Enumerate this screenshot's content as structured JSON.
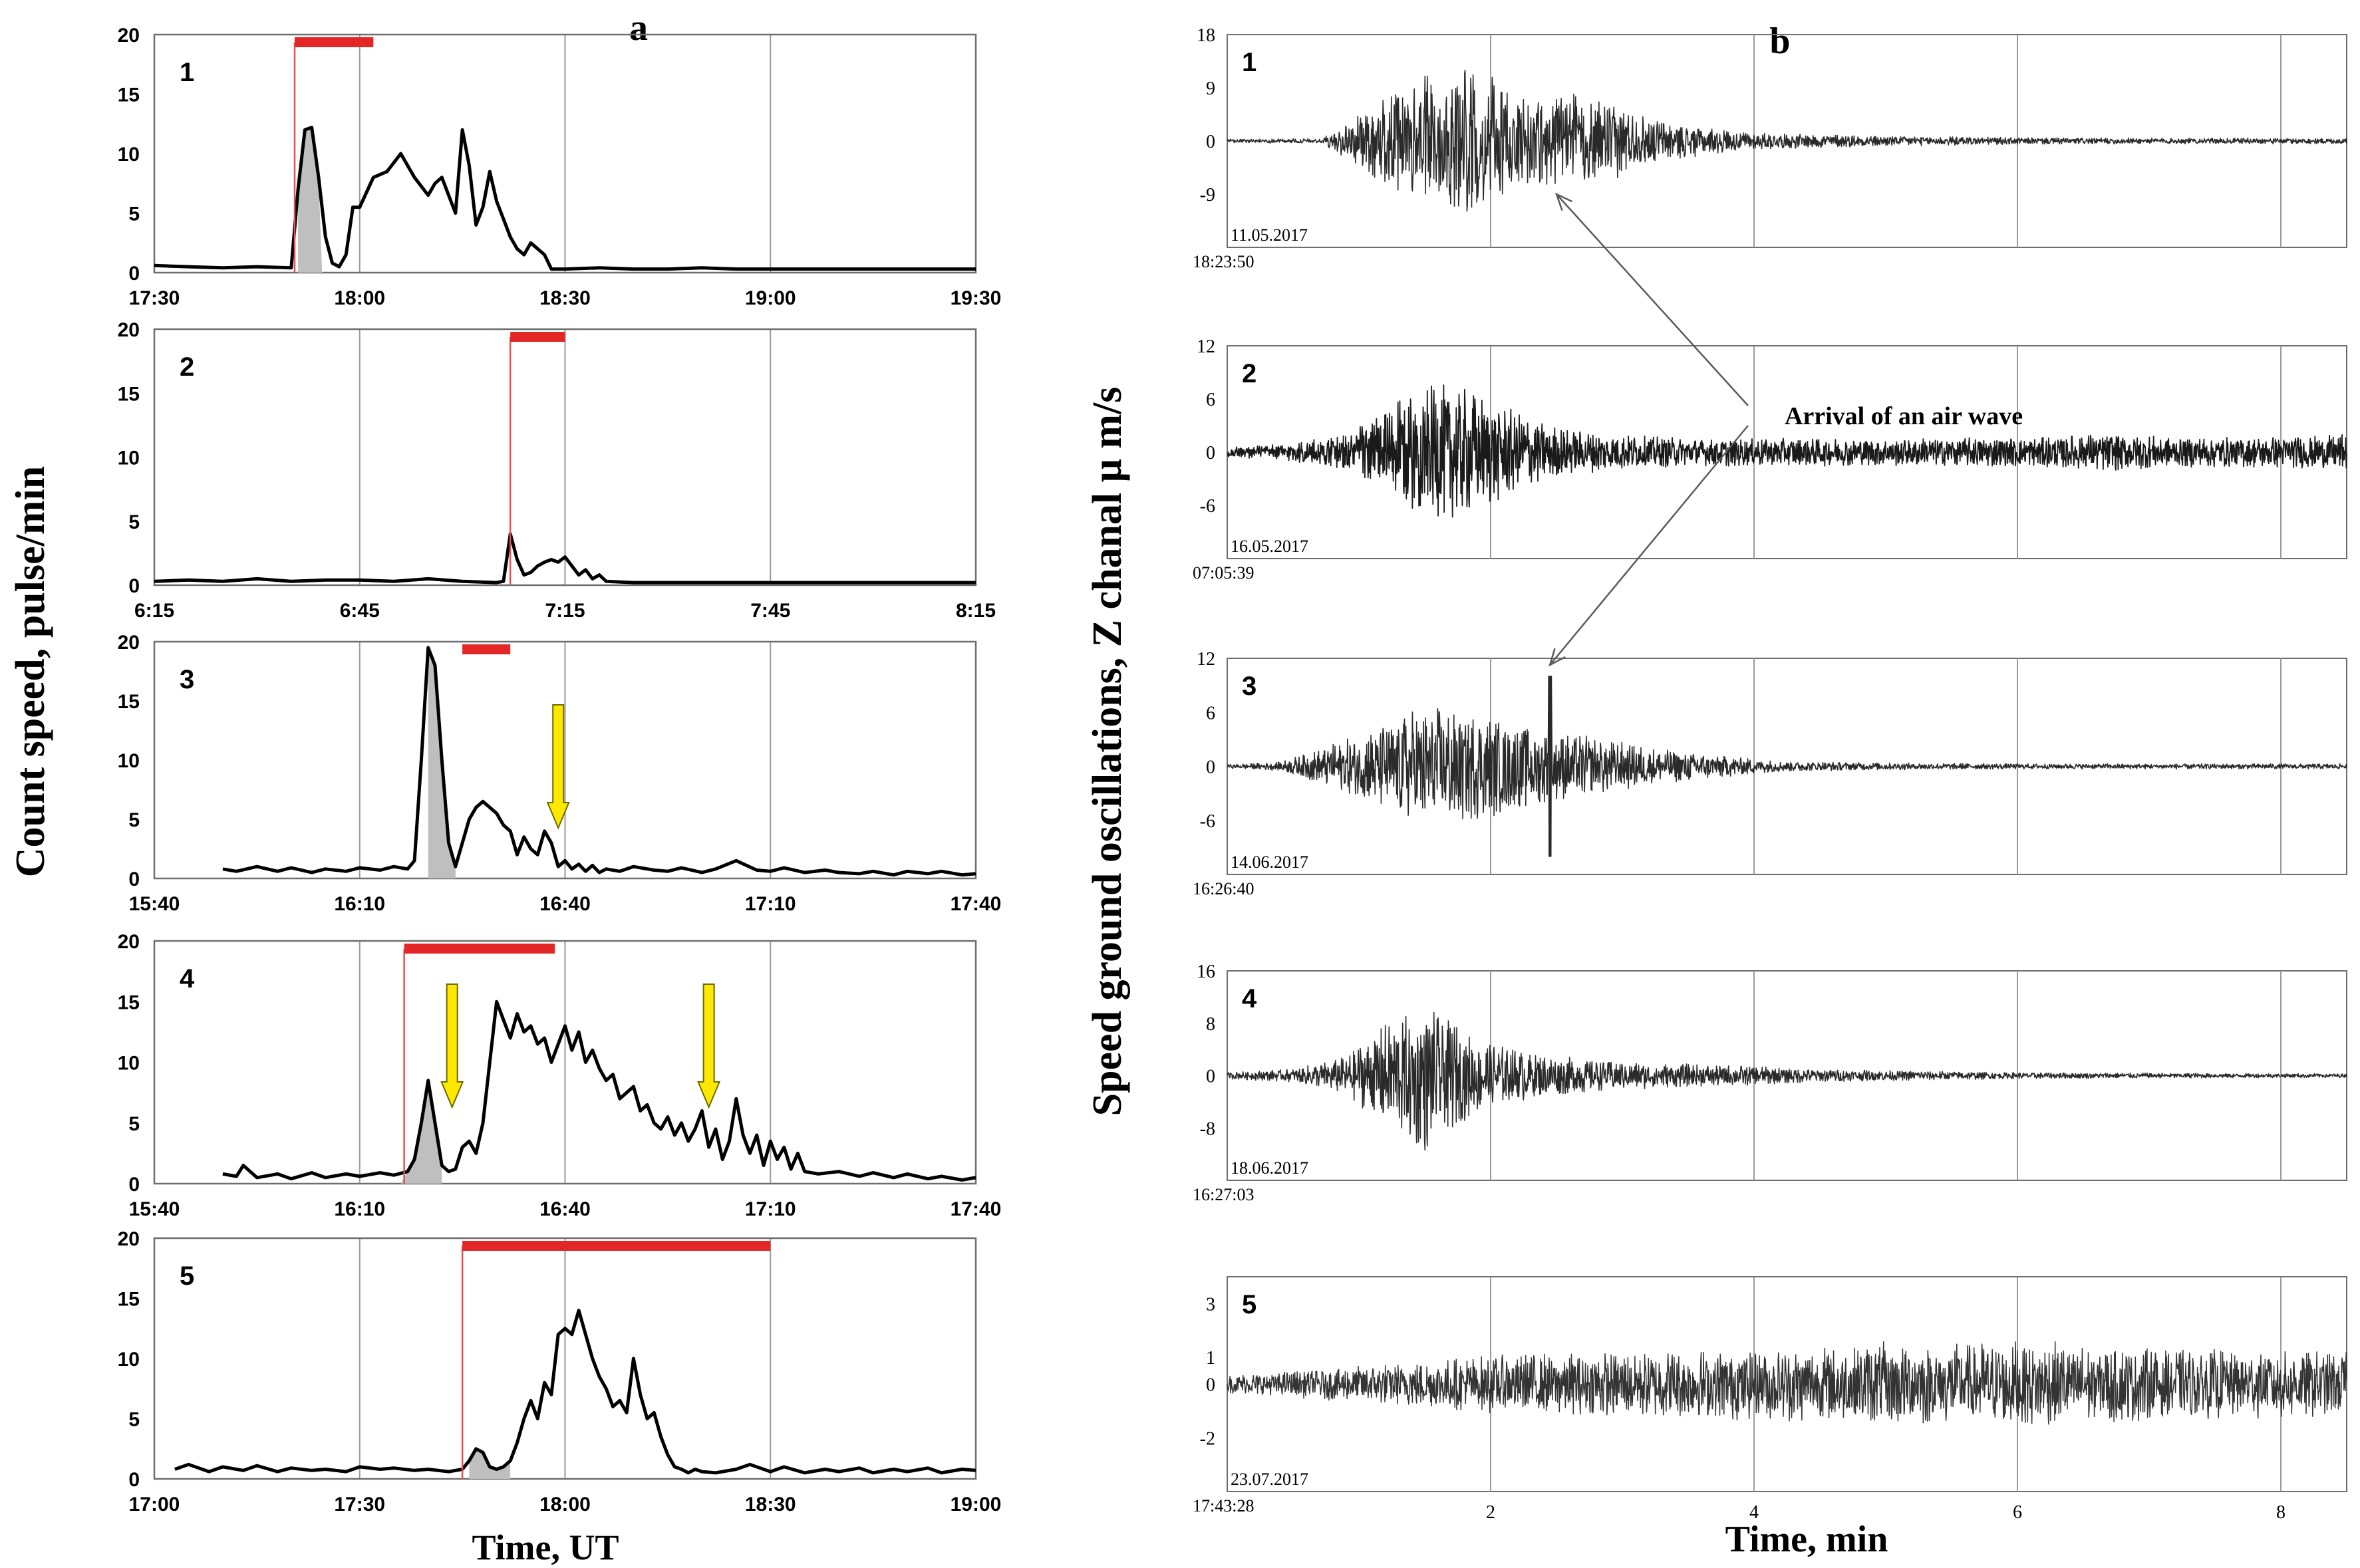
{
  "panel_letters": {
    "a": "a",
    "b": "b"
  },
  "left_ylabel": "Count speed, pulse/min",
  "left_xlabel": "Time, UT",
  "right_ylabel": "Speed ground oscillations, Z chanal    μ m/s",
  "right_xlabel": "Time, min",
  "annotation": "Arrival of an air wave",
  "colors": {
    "curve": "#000000",
    "shade": "#bfbfbf",
    "duration_bar": "#e32626",
    "onset_line": "#e85050",
    "arrow": "#ffe800",
    "arrow_edge": "#6b6b00",
    "grid": "#9a9a9a",
    "frame": "#6e6e6e"
  },
  "chart_data": [
    {
      "type": "line",
      "label": "1",
      "ylim": [
        0,
        20
      ],
      "yticks": [
        0,
        5,
        10,
        15,
        20
      ],
      "xlim": [
        0,
        120
      ],
      "xticks": [
        0,
        30,
        60,
        90,
        120
      ],
      "xtick_labels": [
        "17:30",
        "18:00",
        "18:30",
        "19:00",
        "19:30"
      ],
      "duration_bar": [
        20.5,
        32
      ],
      "onset": 20.5,
      "shaded": [
        21,
        24.5
      ],
      "arrows": [],
      "x": [
        0,
        5,
        10,
        15,
        20,
        21,
        22,
        23,
        24,
        25,
        26,
        27,
        28,
        29,
        30,
        32,
        34,
        36,
        38,
        40,
        41,
        42,
        43,
        44,
        45,
        46,
        47,
        48,
        49,
        50,
        51,
        52,
        53,
        54,
        55,
        56,
        57,
        58,
        60,
        65,
        70,
        75,
        80,
        85,
        90,
        95,
        100,
        105,
        110,
        115,
        120
      ],
      "y": [
        0.6,
        0.5,
        0.4,
        0.5,
        0.4,
        7,
        12,
        12.2,
        8,
        3,
        0.8,
        0.5,
        1.5,
        5.5,
        5.5,
        8,
        8.5,
        10,
        8,
        6.5,
        7.5,
        8,
        6.5,
        5,
        12,
        9,
        4,
        5.5,
        8.5,
        6,
        4.5,
        3,
        2,
        1.5,
        2.5,
        2,
        1.5,
        0.3,
        0.3,
        0.4,
        0.3,
        0.3,
        0.4,
        0.3,
        0.3,
        0.3,
        0.3,
        0.3,
        0.3,
        0.3,
        0.3
      ]
    },
    {
      "type": "line",
      "label": "2",
      "ylim": [
        0,
        20
      ],
      "yticks": [
        0,
        5,
        10,
        15,
        20
      ],
      "xlim": [
        0,
        120
      ],
      "xticks": [
        0,
        30,
        60,
        90,
        120
      ],
      "xtick_labels": [
        "6:15",
        "6:45",
        "7:15",
        "7:45",
        "8:15"
      ],
      "duration_bar": [
        52,
        60
      ],
      "onset": 52,
      "shaded": [],
      "arrows": [],
      "x": [
        0,
        5,
        10,
        15,
        20,
        25,
        30,
        35,
        40,
        45,
        50,
        51,
        52,
        53,
        54,
        55,
        56,
        57,
        58,
        59,
        60,
        61,
        62,
        63,
        64,
        65,
        66,
        70,
        75,
        80,
        85,
        90,
        95,
        100,
        105,
        110,
        115,
        120
      ],
      "y": [
        0.3,
        0.4,
        0.3,
        0.5,
        0.3,
        0.4,
        0.4,
        0.3,
        0.5,
        0.3,
        0.2,
        0.3,
        4,
        2,
        0.8,
        1,
        1.5,
        1.8,
        2,
        1.8,
        2.2,
        1.5,
        0.8,
        1.2,
        0.5,
        0.8,
        0.3,
        0.2,
        0.2,
        0.2,
        0.2,
        0.2,
        0.2,
        0.2,
        0.2,
        0.2,
        0.2,
        0.2
      ]
    },
    {
      "type": "line",
      "label": "3",
      "ylim": [
        0,
        20
      ],
      "yticks": [
        0,
        5,
        10,
        15,
        20
      ],
      "xlim": [
        0,
        120
      ],
      "xticks": [
        0,
        30,
        60,
        90,
        120
      ],
      "xtick_labels": [
        "15:40",
        "16:10",
        "16:40",
        "17:10",
        "17:40"
      ],
      "duration_bar": [
        45,
        52
      ],
      "onset": null,
      "shaded": [
        40,
        44
      ],
      "arrows": [
        59
      ],
      "x": [
        10,
        12,
        15,
        18,
        20,
        23,
        25,
        28,
        30,
        33,
        35,
        37,
        38,
        39,
        40,
        41,
        42,
        43,
        44,
        45,
        46,
        47,
        48,
        49,
        50,
        51,
        52,
        53,
        54,
        55,
        56,
        57,
        58,
        59,
        60,
        61,
        62,
        63,
        64,
        65,
        66,
        68,
        70,
        73,
        75,
        77,
        80,
        82,
        85,
        88,
        90,
        92,
        95,
        98,
        100,
        103,
        105,
        108,
        110,
        113,
        115,
        118,
        120
      ],
      "y": [
        0.8,
        0.6,
        1,
        0.6,
        0.9,
        0.5,
        0.8,
        0.6,
        0.9,
        0.7,
        1,
        0.8,
        1.5,
        10,
        19.5,
        18,
        10,
        3,
        1,
        3,
        5,
        6,
        6.5,
        6,
        5.5,
        4.5,
        4,
        2,
        3.5,
        2.5,
        2,
        4,
        3,
        1,
        1.5,
        0.8,
        1.2,
        0.6,
        1.1,
        0.5,
        0.8,
        0.6,
        1,
        0.7,
        0.6,
        0.9,
        0.5,
        0.8,
        1.5,
        0.7,
        0.6,
        0.9,
        0.5,
        0.7,
        0.5,
        0.4,
        0.6,
        0.3,
        0.6,
        0.4,
        0.6,
        0.3,
        0.4
      ]
    },
    {
      "type": "line",
      "label": "4",
      "ylim": [
        0,
        20
      ],
      "yticks": [
        0,
        5,
        10,
        15,
        20
      ],
      "xlim": [
        0,
        120
      ],
      "xticks": [
        0,
        30,
        60,
        90,
        120
      ],
      "xtick_labels": [
        "15:40",
        "16:10",
        "16:40",
        "17:10",
        "17:40"
      ],
      "duration_bar": [
        36.5,
        58.5
      ],
      "onset": 36.5,
      "shaded": [
        36,
        42
      ],
      "arrows": [
        43.5,
        81
      ],
      "x": [
        10,
        12,
        13,
        15,
        18,
        20,
        23,
        25,
        28,
        30,
        33,
        35,
        37,
        38,
        39,
        40,
        41,
        42,
        43,
        44,
        45,
        46,
        47,
        48,
        49,
        50,
        51,
        52,
        53,
        54,
        55,
        56,
        57,
        58,
        59,
        60,
        61,
        62,
        63,
        64,
        65,
        66,
        67,
        68,
        69,
        70,
        71,
        72,
        73,
        74,
        75,
        76,
        77,
        78,
        79,
        80,
        81,
        82,
        83,
        84,
        85,
        86,
        87,
        88,
        89,
        90,
        91,
        92,
        93,
        94,
        95,
        97,
        100,
        103,
        105,
        108,
        110,
        113,
        115,
        118,
        120
      ],
      "y": [
        0.8,
        0.6,
        1.5,
        0.5,
        0.8,
        0.4,
        0.9,
        0.5,
        0.8,
        0.6,
        0.9,
        0.7,
        1,
        2,
        5,
        8.5,
        5,
        1.5,
        1,
        1.2,
        3,
        3.5,
        2.5,
        5,
        10,
        15,
        13.5,
        12,
        14,
        12.5,
        13,
        11.5,
        12,
        10,
        11.5,
        13,
        11,
        12.5,
        10,
        11,
        9.5,
        8.5,
        9,
        7,
        7.5,
        8,
        6,
        6.5,
        5,
        4.5,
        5.5,
        4,
        5,
        3.5,
        4.5,
        6,
        3,
        4.5,
        2,
        3.5,
        7,
        4,
        2.5,
        4,
        1.5,
        3.5,
        2,
        3,
        1.2,
        2.5,
        1,
        0.8,
        1,
        0.6,
        0.9,
        0.5,
        0.8,
        0.4,
        0.6,
        0.3,
        0.5
      ]
    },
    {
      "type": "line",
      "label": "5",
      "ylim": [
        0,
        20
      ],
      "yticks": [
        0,
        5,
        10,
        15,
        20
      ],
      "xlim": [
        0,
        120
      ],
      "xticks": [
        0,
        30,
        60,
        90,
        120
      ],
      "xtick_labels": [
        "17:00",
        "17:30",
        "18:00",
        "18:30",
        "19:00"
      ],
      "duration_bar": [
        45,
        90
      ],
      "onset": 45,
      "shaded": [
        46,
        52
      ],
      "arrows": [],
      "x": [
        3,
        5,
        8,
        10,
        13,
        15,
        18,
        20,
        23,
        25,
        28,
        30,
        33,
        35,
        38,
        40,
        43,
        45,
        46,
        47,
        48,
        49,
        50,
        51,
        52,
        53,
        54,
        55,
        56,
        57,
        58,
        59,
        60,
        61,
        62,
        63,
        64,
        65,
        66,
        67,
        68,
        69,
        70,
        71,
        72,
        73,
        74,
        75,
        76,
        77,
        78,
        79,
        80,
        82,
        85,
        87,
        90,
        92,
        95,
        98,
        100,
        103,
        105,
        108,
        110,
        113,
        115,
        118,
        120
      ],
      "y": [
        0.8,
        1.2,
        0.6,
        1,
        0.7,
        1.1,
        0.6,
        0.9,
        0.7,
        0.8,
        0.6,
        1,
        0.8,
        0.9,
        0.7,
        0.8,
        0.6,
        0.8,
        1.5,
        2.5,
        2.2,
        1,
        0.8,
        1,
        1.5,
        3,
        5,
        6.5,
        5,
        8,
        7,
        12,
        12.5,
        12,
        14,
        12,
        10,
        8.5,
        7.5,
        6,
        6.5,
        5.5,
        10,
        7,
        5,
        5.5,
        3.5,
        2,
        1,
        0.8,
        0.5,
        0.8,
        0.6,
        0.5,
        0.8,
        1.2,
        0.6,
        1,
        0.5,
        0.8,
        0.6,
        0.9,
        0.5,
        0.8,
        0.6,
        0.9,
        0.5,
        0.8,
        0.7
      ]
    },
    {
      "type": "line",
      "label": "1",
      "date": "11.05.2017",
      "start_time": "18:23:50",
      "ylim": [
        -18,
        18
      ],
      "yticks": [
        -9,
        0,
        9,
        18
      ],
      "ytick_labels": [
        "-9",
        "0",
        "9",
        "18"
      ],
      "xlim": [
        0,
        8.5
      ],
      "xticks": [
        2,
        4,
        6,
        8
      ],
      "xtick_labels": [
        "",
        "",
        "",
        ""
      ],
      "envelope": {
        "t": [
          0,
          0.7,
          0.9,
          1.2,
          1.5,
          1.8,
          2.1,
          2.3,
          2.6,
          2.9,
          3.2,
          3.6,
          4,
          5,
          6,
          7,
          8,
          8.5
        ],
        "amp": [
          0.3,
          0.4,
          3,
          8,
          11,
          14,
          10,
          7.5,
          8.5,
          7,
          4,
          2.5,
          1.5,
          0.9,
          0.6,
          0.5,
          0.5,
          0.5
        ]
      },
      "stroke_width": 1.6,
      "stroke_color": "#2a2a2a"
    },
    {
      "type": "line",
      "label": "2",
      "date": "16.05.2017",
      "start_time": "07:05:39",
      "ylim": [
        -12,
        12
      ],
      "yticks": [
        -6,
        0,
        6,
        12
      ],
      "ytick_labels": [
        "-6",
        "0",
        "6",
        "12"
      ],
      "xlim": [
        0,
        8.5
      ],
      "xticks": [
        2,
        4,
        6,
        8
      ],
      "xtick_labels": [
        "",
        "",
        "",
        ""
      ],
      "envelope": {
        "t": [
          0,
          0.4,
          0.9,
          1.2,
          1.6,
          1.9,
          2.2,
          2.6,
          3,
          3.5,
          4,
          5,
          6,
          6.7,
          7.2,
          8,
          8.5
        ],
        "amp": [
          0.6,
          0.9,
          2,
          5,
          8,
          7,
          4.5,
          2.5,
          2,
          1.6,
          1.6,
          1.6,
          1.7,
          2.2,
          1.7,
          1.8,
          2
        ]
      },
      "stroke_width": 1.8,
      "stroke_color": "#1a1a1a"
    },
    {
      "type": "line",
      "label": "3",
      "date": "14.06.2017",
      "start_time": "16:26:40",
      "ylim": [
        -12,
        12
      ],
      "yticks": [
        -6,
        0,
        6,
        12
      ],
      "ytick_labels": [
        "-6",
        "0",
        "6",
        "12"
      ],
      "xlim": [
        0,
        8.5
      ],
      "xticks": [
        2,
        4,
        6,
        8
      ],
      "xtick_labels": [
        "",
        "",
        "",
        ""
      ],
      "envelope": {
        "t": [
          0,
          0.4,
          0.6,
          0.9,
          1.2,
          1.5,
          1.9,
          2.2,
          2.5,
          2.9,
          3.3,
          3.8,
          4.2,
          5,
          6,
          7,
          8.5
        ],
        "amp": [
          0.2,
          0.5,
          1.5,
          3,
          5,
          7,
          6,
          5,
          4,
          3,
          2,
          1.2,
          0.6,
          0.4,
          0.3,
          0.3,
          0.3
        ]
      },
      "spikes": [
        {
          "t": 2.45,
          "amp": 10
        }
      ],
      "stroke_width": 1.6,
      "stroke_color": "#2a2a2a"
    },
    {
      "type": "line",
      "label": "4",
      "date": "18.06.2017",
      "start_time": "16:27:03",
      "ylim": [
        -16,
        16
      ],
      "yticks": [
        -8,
        0,
        8,
        16
      ],
      "ytick_labels": [
        "-8",
        "0",
        "8",
        "16"
      ],
      "xlim": [
        0,
        8.5
      ],
      "xticks": [
        2,
        4,
        6,
        8
      ],
      "xtick_labels": [
        "",
        "",
        "",
        ""
      ],
      "envelope": {
        "t": [
          0,
          0.5,
          0.9,
          1.2,
          1.5,
          1.8,
          2.1,
          2.5,
          3,
          3.5,
          4,
          4.5,
          5,
          6,
          7,
          8.5
        ],
        "amp": [
          0.5,
          1,
          3,
          8,
          12,
          7,
          4.5,
          3,
          2.2,
          1.8,
          1.5,
          1,
          0.8,
          0.5,
          0.4,
          0.3
        ]
      },
      "stroke_width": 1.6,
      "stroke_color": "#2a2a2a"
    },
    {
      "type": "line",
      "label": "5",
      "date": "23.07.2017",
      "start_time": "17:43:28",
      "ylim": [
        -4,
        4
      ],
      "yticks": [
        -2,
        0,
        1,
        3
      ],
      "ytick_labels": [
        "-2",
        "0",
        "1",
        "3"
      ],
      "xlim": [
        0,
        8.5
      ],
      "xticks": [
        2,
        4,
        6,
        8
      ],
      "xtick_labels": [
        "2",
        "4",
        "6",
        "8"
      ],
      "envelope": {
        "t": [
          0,
          0.5,
          1,
          1.5,
          2,
          2.5,
          3,
          3.5,
          4,
          4.5,
          5,
          5.5,
          6,
          6.5,
          7,
          7.5,
          8,
          8.5
        ],
        "amp": [
          0.35,
          0.5,
          0.7,
          0.9,
          1.1,
          1.2,
          1.2,
          1.3,
          1.4,
          1.4,
          1.6,
          1.5,
          1.7,
          1.5,
          1.4,
          1.3,
          1.3,
          1.2
        ]
      },
      "stroke_width": 1.5,
      "stroke_color": "#333333"
    }
  ]
}
